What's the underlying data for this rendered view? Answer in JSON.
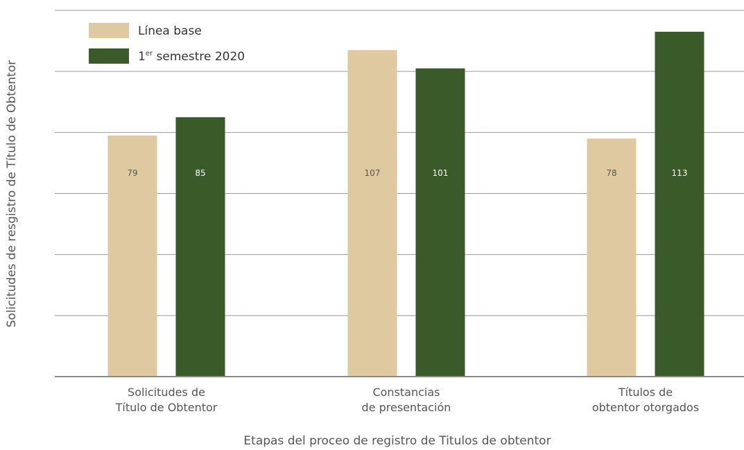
{
  "chart_data": {
    "type": "bar",
    "title": "",
    "xlabel": "Etapas del proceo de registro de Titulos de obtentor",
    "ylabel": "Solicitudes de resgistro de Título de Obtentor",
    "categories": [
      [
        "Solicitudes de",
        "Título de Obtentor"
      ],
      [
        "Constancias",
        "de presentación"
      ],
      [
        "Títulos de",
        "obtentor otorgados"
      ]
    ],
    "series": [
      {
        "name": "Línea base",
        "values": [
          79,
          107,
          78
        ],
        "color": "#dfc9a0",
        "label_color": "#555555"
      },
      {
        "name": "1er semestre 2020",
        "values": [
          85,
          101,
          113
        ],
        "color": "#3a5a2a",
        "label_color": "#ffffff"
      }
    ],
    "legend": {
      "position": "top-left",
      "items": [
        {
          "text": "Línea base"
        },
        {
          "text": "1",
          "sup": "er",
          "rest": " semestre 2020"
        }
      ]
    },
    "ylim": [
      0,
      120
    ],
    "grid": true
  }
}
